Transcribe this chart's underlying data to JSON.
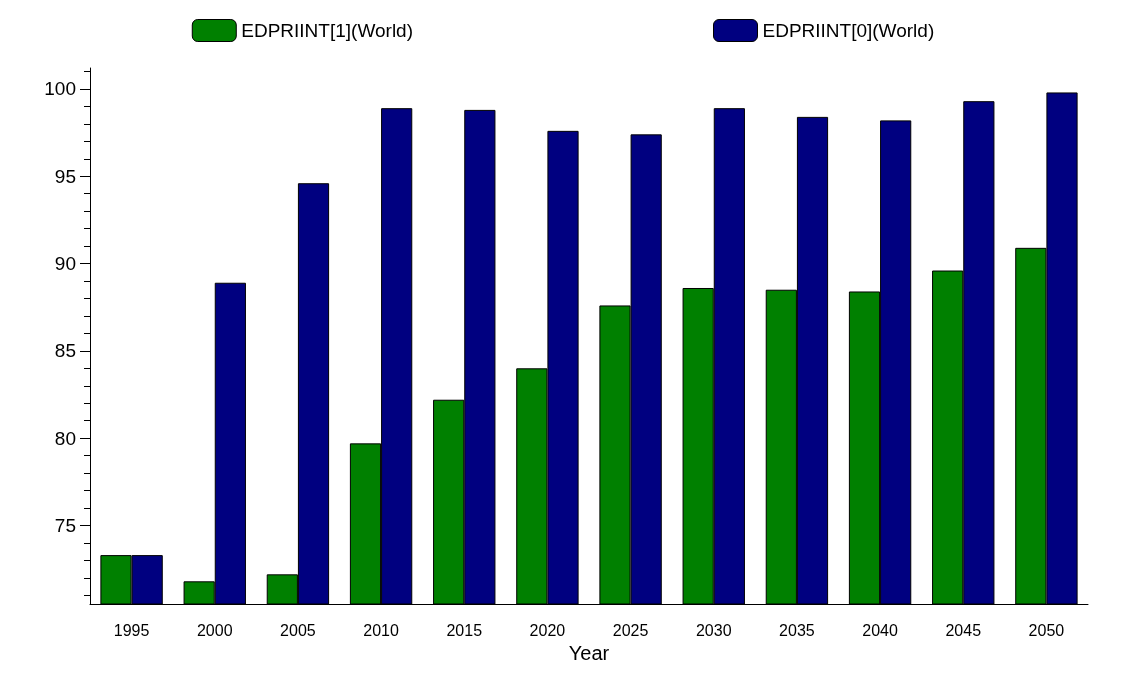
{
  "chart_data": {
    "type": "bar",
    "xlabel": "Year",
    "categories": [
      "1995",
      "2000",
      "2005",
      "2010",
      "2015",
      "2020",
      "2025",
      "2030",
      "2035",
      "2040",
      "2045",
      "2050"
    ],
    "series": [
      {
        "name": "EDPRIINT[1](World)",
        "color": "#008000",
        "values": [
          73.3,
          71.8,
          72.2,
          79.7,
          82.2,
          84.0,
          87.6,
          88.6,
          88.5,
          88.4,
          89.6,
          90.9
        ]
      },
      {
        "name": "EDPRIINT[0](World)",
        "color": "#000080",
        "values": [
          73.3,
          88.9,
          94.6,
          98.9,
          98.8,
          97.6,
          97.4,
          98.9,
          98.4,
          98.2,
          99.3,
          99.8
        ]
      }
    ],
    "ylim": [
      70.5,
      101.2
    ],
    "yticks": [
      75,
      80,
      85,
      90,
      95,
      100
    ],
    "grid": false,
    "legend": "top"
  }
}
